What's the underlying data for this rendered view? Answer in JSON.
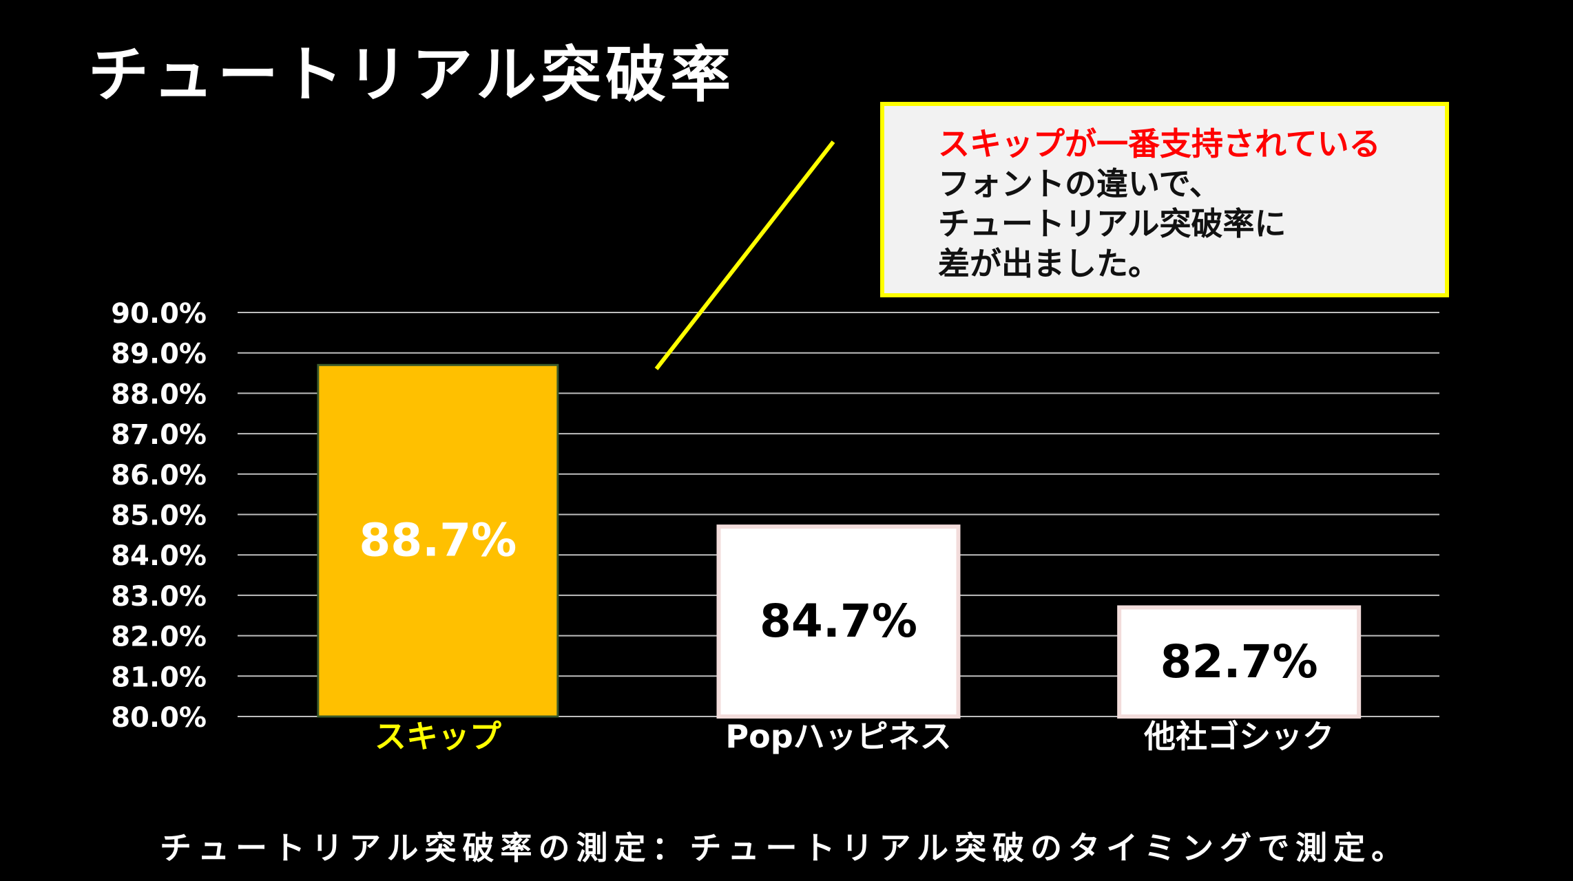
{
  "title": "チュートリアル突破率",
  "callout": {
    "highlight": "スキップが一番支持されている",
    "lines": [
      "フォントの違いで、",
      "チュートリアル突破率に",
      "差が出ました。"
    ]
  },
  "footnote": "チュートリアル突破率の測定：チュートリアル突破のタイミングで測定。",
  "colors": {
    "background": "#000000",
    "highlight_bar": "#ffc000",
    "other_bar": "#ffffff",
    "other_bar_border": "#f2dcdb",
    "callout_border": "#ffff00",
    "callout_highlight_text": "#ff0000",
    "highlight_label": "#ffff00",
    "axis_text": "#ffffff",
    "gridline": "#bfbfbf"
  },
  "chart_data": {
    "type": "bar",
    "categories": [
      "スキップ",
      "Popハッピネス",
      "他社ゴシック"
    ],
    "values": [
      88.7,
      84.7,
      82.7
    ],
    "data_labels": [
      "88.7%",
      "84.7%",
      "82.7%"
    ],
    "highlight_index": 0,
    "ylim": [
      80,
      90
    ],
    "yticks": [
      "80.0%",
      "81.0%",
      "82.0%",
      "83.0%",
      "84.0%",
      "85.0%",
      "86.0%",
      "87.0%",
      "88.0%",
      "89.0%",
      "90.0%"
    ],
    "grid": true,
    "legend": "none",
    "xlabel": "",
    "ylabel": ""
  }
}
